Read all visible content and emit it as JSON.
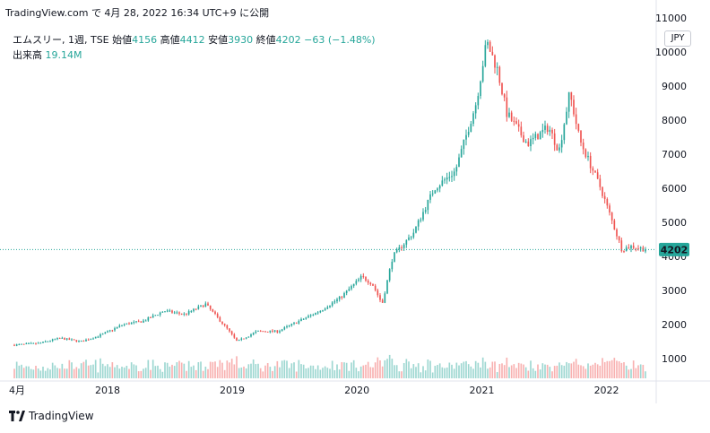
{
  "header": {
    "source_line": "TradingView.com で 4月 28, 2022 16:34 UTC+9 に公開"
  },
  "legend": {
    "symbol_line": "エムスリー, 1週, TSE",
    "open_label": "始値",
    "open_value": "4156",
    "high_label": "高値",
    "high_value": "4412",
    "low_label": "安値",
    "low_value": "3930",
    "close_label": "終値",
    "close_value": "4202",
    "change": "−63 (−1.48%)",
    "volume_label": "出来高",
    "volume_value": "19.14M"
  },
  "currency_button": "JPY",
  "last_price_tag": "4202",
  "footer": {
    "brand": "TradingView"
  },
  "colors": {
    "up": "#26a69a",
    "down": "#ef5350",
    "price_line": "#26a69a"
  },
  "chart_data": {
    "type": "candlestick",
    "timeframe": "1W",
    "symbol": "エムスリー",
    "exchange": "TSE",
    "currency": "JPY",
    "y_ticks": [
      1000,
      2000,
      3000,
      4000,
      5000,
      6000,
      7000,
      8000,
      9000,
      10000,
      11000
    ],
    "x_tick_labels": [
      "4月",
      "2018",
      "2019",
      "2020",
      "2021",
      "2022"
    ],
    "ylim": [
      500,
      11500
    ],
    "last_close": 4202,
    "price_path": [
      {
        "date": "2017-04",
        "close": 1400
      },
      {
        "date": "2017-06",
        "close": 1450
      },
      {
        "date": "2017-08",
        "close": 1600
      },
      {
        "date": "2017-10",
        "close": 1500
      },
      {
        "date": "2017-12",
        "close": 1700
      },
      {
        "date": "2018-02",
        "close": 2000
      },
      {
        "date": "2018-04",
        "close": 2100
      },
      {
        "date": "2018-06",
        "close": 2400
      },
      {
        "date": "2018-08",
        "close": 2300
      },
      {
        "date": "2018-10",
        "close": 2600
      },
      {
        "date": "2018-12",
        "close": 1900
      },
      {
        "date": "2019-01",
        "close": 1500
      },
      {
        "date": "2019-03",
        "close": 1800
      },
      {
        "date": "2019-05",
        "close": 1800
      },
      {
        "date": "2019-07",
        "close": 2100
      },
      {
        "date": "2019-09",
        "close": 2400
      },
      {
        "date": "2019-11",
        "close": 2800
      },
      {
        "date": "2020-01",
        "close": 3400
      },
      {
        "date": "2020-02",
        "close": 3200
      },
      {
        "date": "2020-03",
        "close": 2600
      },
      {
        "date": "2020-04",
        "close": 4000
      },
      {
        "date": "2020-06",
        "close": 4700
      },
      {
        "date": "2020-08",
        "close": 6000
      },
      {
        "date": "2020-10",
        "close": 6500
      },
      {
        "date": "2020-12",
        "close": 8500
      },
      {
        "date": "2021-01",
        "close": 10300
      },
      {
        "date": "2021-02",
        "close": 9500
      },
      {
        "date": "2021-03",
        "close": 8200
      },
      {
        "date": "2021-05",
        "close": 7300
      },
      {
        "date": "2021-07",
        "close": 7800
      },
      {
        "date": "2021-08",
        "close": 7100
      },
      {
        "date": "2021-09",
        "close": 8800
      },
      {
        "date": "2021-10",
        "close": 7400
      },
      {
        "date": "2021-12",
        "close": 6000
      },
      {
        "date": "2022-02",
        "close": 4200
      },
      {
        "date": "2022-03",
        "close": 4300
      },
      {
        "date": "2022-04",
        "close": 4202
      }
    ]
  }
}
